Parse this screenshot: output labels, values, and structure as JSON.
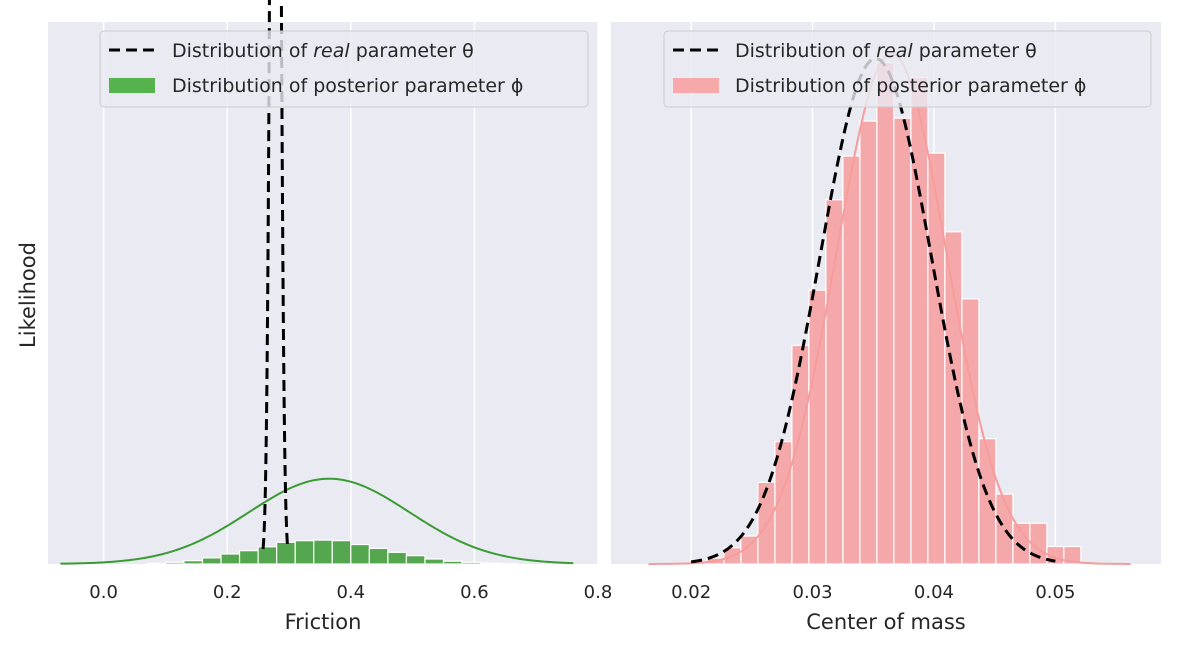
{
  "figure": {
    "shared_ylabel": "Likelihood"
  },
  "chart_data": [
    {
      "type": "histogram",
      "xlabel": "Friction",
      "ylabel": "Likelihood",
      "xlim": [
        -0.09,
        0.8
      ],
      "xticks": [
        "0.0",
        "0.2",
        "0.4",
        "0.6",
        "0.8"
      ],
      "xtick_values": [
        0.0,
        0.2,
        0.4,
        0.6,
        0.8
      ],
      "ylim": [
        0,
        19.5
      ],
      "grid": true,
      "legend_position": "top-right",
      "hist_color": "#3a9b32",
      "bin_width": 0.03,
      "bins_left": [
        0.07,
        0.1,
        0.13,
        0.16,
        0.19,
        0.22,
        0.25,
        0.28,
        0.31,
        0.34,
        0.37,
        0.4,
        0.43,
        0.46,
        0.49,
        0.52,
        0.55,
        0.58,
        0.61,
        0.64
      ],
      "bin_density": [
        0.02,
        0.06,
        0.12,
        0.22,
        0.36,
        0.48,
        0.62,
        0.78,
        0.84,
        0.86,
        0.84,
        0.7,
        0.56,
        0.42,
        0.3,
        0.18,
        0.1,
        0.06,
        0.03,
        0.01
      ],
      "kde": {
        "mean": 0.365,
        "sd": 0.13,
        "x_range": [
          -0.07,
          0.76
        ]
      },
      "real": {
        "mean": 0.278,
        "sd": 0.0065,
        "x_range": [
          0.258,
          0.298
        ]
      },
      "series": [
        {
          "name": "Distribution of real parameter θ",
          "name_prefix": "Distribution of ",
          "name_emph": "real",
          "name_suffix": " parameter θ",
          "style": "dashed",
          "color": "#000000"
        },
        {
          "name": "Distribution of posterior parameter ϕ",
          "style": "patch",
          "color": "#3a9b32"
        }
      ]
    },
    {
      "type": "histogram",
      "xlabel": "Center of mass",
      "ylabel": "Likelihood",
      "xlim": [
        0.0134,
        0.0587
      ],
      "xticks": [
        "0.02",
        "0.03",
        "0.04",
        "0.05"
      ],
      "xtick_values": [
        0.02,
        0.03,
        0.04,
        0.05
      ],
      "ylim": [
        0,
        93
      ],
      "grid": true,
      "legend_position": "top-right",
      "hist_color": "#f79c9c",
      "bin_width": 0.0014,
      "bins_left": [
        0.0213,
        0.0227,
        0.0241,
        0.0255,
        0.0269,
        0.0283,
        0.0297,
        0.0311,
        0.0325,
        0.0339,
        0.0353,
        0.0367,
        0.0381,
        0.0395,
        0.0409,
        0.0423,
        0.0437,
        0.0451,
        0.0465,
        0.0479,
        0.0493,
        0.0507
      ],
      "bin_density": [
        1.0,
        2.8,
        4.8,
        14.0,
        21.0,
        37.5,
        47.0,
        62.5,
        70.0,
        76.0,
        86.0,
        76.5,
        83.5,
        70.5,
        57.0,
        45.5,
        21.5,
        12.0,
        7.0,
        7.0,
        3.0,
        3.0
      ],
      "kde": {
        "mean": 0.0365,
        "sd": 0.00455,
        "x_range": [
          0.0165,
          0.0562
        ]
      },
      "real": {
        "mean": 0.0352,
        "sd": 0.0046,
        "x_range": [
          0.02,
          0.05
        ]
      },
      "series": [
        {
          "name": "Distribution of real parameter θ",
          "name_prefix": "Distribution of ",
          "name_emph": "real",
          "name_suffix": " parameter θ",
          "style": "dashed",
          "color": "#000000"
        },
        {
          "name": "Distribution of posterior parameter ϕ",
          "style": "patch",
          "color": "#f7a8a8"
        }
      ]
    }
  ]
}
